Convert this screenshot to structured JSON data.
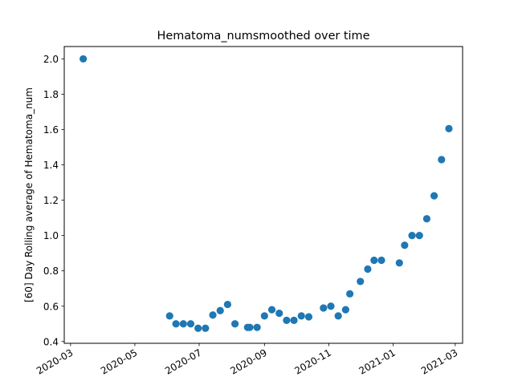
{
  "chart_data": {
    "type": "scatter",
    "title": "Hematoma_numsmoothed over time",
    "xlabel": "",
    "ylabel": "[60] Day Rolling average of Hematoma_num",
    "x_type": "date",
    "xlim": [
      "2020-02-24",
      "2021-03-08"
    ],
    "ylim": [
      0.39,
      2.07
    ],
    "x_ticks": [
      "2020-03-01",
      "2020-05-01",
      "2020-07-01",
      "2020-09-01",
      "2020-11-01",
      "2021-01-01",
      "2021-03-01"
    ],
    "x_tick_labels": [
      "2020-03",
      "2020-05",
      "2020-07",
      "2020-09",
      "2020-11",
      "2021-01",
      "2021-03"
    ],
    "y_ticks": [
      0.4,
      0.6,
      0.8,
      1.0,
      1.2,
      1.4,
      1.6,
      1.8,
      2.0
    ],
    "y_tick_labels": [
      "0.4",
      "0.6",
      "0.8",
      "1.0",
      "1.2",
      "1.4",
      "1.6",
      "1.8",
      "2.0"
    ],
    "grid": false,
    "color": "#1f77b4",
    "series": [
      {
        "points": [
          {
            "x": "2020-03-13",
            "y": 2.0
          },
          {
            "x": "2020-06-03",
            "y": 0.545
          },
          {
            "x": "2020-06-09",
            "y": 0.5
          },
          {
            "x": "2020-06-16",
            "y": 0.5
          },
          {
            "x": "2020-06-23",
            "y": 0.5
          },
          {
            "x": "2020-06-30",
            "y": 0.475
          },
          {
            "x": "2020-07-07",
            "y": 0.475
          },
          {
            "x": "2020-07-14",
            "y": 0.55
          },
          {
            "x": "2020-07-21",
            "y": 0.575
          },
          {
            "x": "2020-07-28",
            "y": 0.61
          },
          {
            "x": "2020-08-04",
            "y": 0.5
          },
          {
            "x": "2020-08-16",
            "y": 0.48
          },
          {
            "x": "2020-08-18",
            "y": 0.48
          },
          {
            "x": "2020-08-25",
            "y": 0.48
          },
          {
            "x": "2020-09-01",
            "y": 0.545
          },
          {
            "x": "2020-09-08",
            "y": 0.58
          },
          {
            "x": "2020-09-15",
            "y": 0.56
          },
          {
            "x": "2020-09-22",
            "y": 0.52
          },
          {
            "x": "2020-09-29",
            "y": 0.52
          },
          {
            "x": "2020-10-06",
            "y": 0.545
          },
          {
            "x": "2020-10-13",
            "y": 0.54
          },
          {
            "x": "2020-10-27",
            "y": 0.59
          },
          {
            "x": "2020-11-03",
            "y": 0.6
          },
          {
            "x": "2020-11-10",
            "y": 0.545
          },
          {
            "x": "2020-11-17",
            "y": 0.58
          },
          {
            "x": "2020-11-21",
            "y": 0.67
          },
          {
            "x": "2020-12-01",
            "y": 0.74
          },
          {
            "x": "2020-12-08",
            "y": 0.81
          },
          {
            "x": "2020-12-14",
            "y": 0.86
          },
          {
            "x": "2020-12-21",
            "y": 0.86
          },
          {
            "x": "2021-01-07",
            "y": 0.845
          },
          {
            "x": "2021-01-12",
            "y": 0.945
          },
          {
            "x": "2021-01-19",
            "y": 1.0
          },
          {
            "x": "2021-01-26",
            "y": 1.0
          },
          {
            "x": "2021-02-02",
            "y": 1.095
          },
          {
            "x": "2021-02-09",
            "y": 1.225
          },
          {
            "x": "2021-02-16",
            "y": 1.43
          },
          {
            "x": "2021-02-23",
            "y": 1.605
          }
        ]
      }
    ]
  }
}
